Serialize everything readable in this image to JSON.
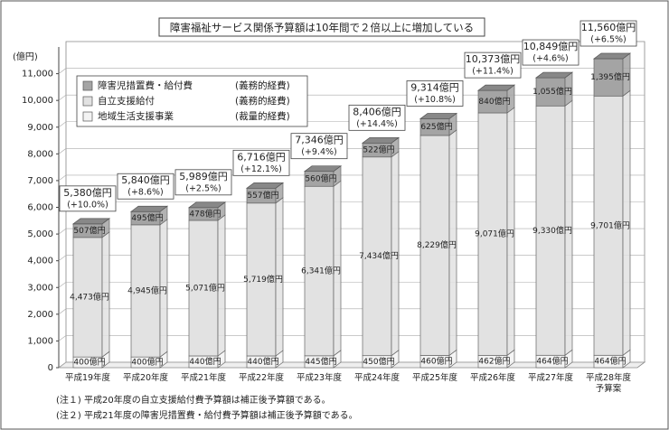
{
  "chart_data": {
    "type": "stacked_bar_3d",
    "title": "障害福祉サービス関係予算額は10年間で２倍以上に増加している",
    "y_unit": "(億円)",
    "categories": [
      "平成19年度",
      "平成20年度",
      "平成21年度",
      "平成22年度",
      "平成23年度",
      "平成24年度",
      "平成25年度",
      "平成26年度",
      "平成27年度",
      "平成28年度\n予算案"
    ],
    "series": [
      {
        "name": "地域生活支援事業",
        "budget_type": "(裁量的経費)",
        "color": "#f3f3f3",
        "values": [
          400,
          400,
          440,
          440,
          445,
          450,
          460,
          462,
          464,
          464
        ],
        "value_labels": [
          "400億円",
          "400億円",
          "440億円",
          "440億円",
          "445億円",
          "450億円",
          "460億円",
          "462億円",
          "464億円",
          "464億円"
        ]
      },
      {
        "name": "自立支援給付",
        "budget_type": "(義務的経費)",
        "color": "#e2e2e2",
        "values": [
          4473,
          4945,
          5071,
          5719,
          6341,
          7434,
          8229,
          9071,
          9330,
          9701
        ],
        "value_labels": [
          "4,473億円",
          "4,945億円",
          "5,071億円",
          "5,719億円",
          "6,341億円",
          "7,434億円",
          "8,229億円",
          "9,071億円",
          "9,330億円",
          "9,701億円"
        ]
      },
      {
        "name": "障害児措置費・給付費",
        "budget_type": "(義務的経費)",
        "color": "#a4a4a4",
        "values": [
          507,
          495,
          478,
          557,
          560,
          522,
          625,
          840,
          1055,
          1395
        ],
        "value_labels": [
          "507億円",
          "495億円",
          "478億円",
          "557億円",
          "560億円",
          "522億円",
          "625億円",
          "840億円",
          "1,055億円",
          "1,395億円"
        ]
      }
    ],
    "totals": {
      "values": [
        5380,
        5840,
        5989,
        6716,
        7346,
        8406,
        9314,
        10373,
        10849,
        11560
      ],
      "value_labels": [
        "5,380億円",
        "5,840億円",
        "5,989億円",
        "6,716億円",
        "7,346億円",
        "8,406億円",
        "9,314億円",
        "10,373億円",
        "10,849億円",
        "11,560億円"
      ]
    },
    "changes": {
      "values": [
        10.0,
        8.6,
        2.5,
        12.1,
        9.4,
        14.4,
        10.8,
        11.4,
        4.6,
        6.5
      ],
      "value_labels": [
        "(+10.0%)",
        "(+8.6%)",
        "(+2.5%)",
        "(+12.1%)",
        "(+9.4%)",
        "(+14.4%)",
        "(+10.8%)",
        "(+11.4%)",
        "(+4.6%)",
        "(+6.5%)"
      ]
    },
    "ylim": [
      0,
      12000
    ],
    "yticks": [
      0,
      {
        "value": 1000,
        "label": "1,000"
      },
      {
        "value": 2000,
        "label": "2,000"
      },
      {
        "value": 3000,
        "label": "3,000"
      },
      {
        "value": 4000,
        "label": "4,000"
      },
      {
        "value": 5000,
        "label": "5,000"
      },
      {
        "value": 6000,
        "label": "6,000"
      },
      {
        "value": 7000,
        "label": "7,000"
      },
      {
        "value": 8000,
        "label": "8,000"
      },
      {
        "value": 9000,
        "label": "9,000"
      },
      {
        "value": 10000,
        "label": "10,000"
      },
      {
        "value": 11000,
        "label": "11,000"
      }
    ],
    "notes": [
      "(注１) 平成20年度の自立支援給付費予算額は補正後予算額である。",
      "(注２) 平成21年度の障害児措置費・給付費予算額は補正後予算額である。"
    ]
  }
}
